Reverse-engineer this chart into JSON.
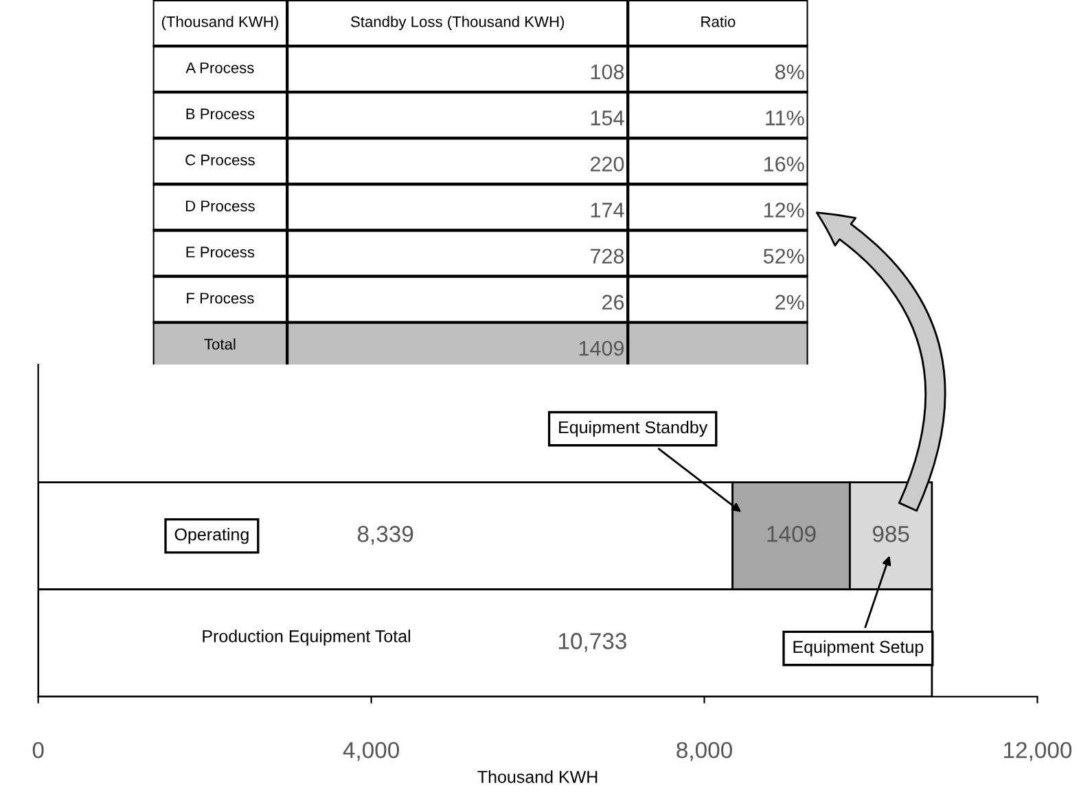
{
  "chart_data": [
    {
      "type": "other",
      "ylabel": "(Thousand KWH)",
      "categories": [
        "A Process",
        "B Process",
        "C Process",
        "D Process",
        "E Process",
        "F Process",
        "Total"
      ],
      "series": [
        {
          "name": "Standby Loss (Thousand KWH)",
          "values": [
            108,
            154,
            220,
            174,
            728,
            26,
            1409
          ],
          "value_labels": [
            "108",
            "154",
            "220",
            "174",
            "728",
            "26",
            "1409"
          ],
          "colors": [
            "#ffffff",
            "#ffffff",
            "#ffffff",
            "#ffffff",
            "#ffffff",
            "#ffffff",
            "#bfbfbf"
          ]
        },
        {
          "name": "Ratio",
          "values": [
            8,
            11,
            16,
            12,
            52,
            2,
            null
          ],
          "value_labels": [
            "8%",
            "11%",
            "16%",
            "12%",
            "52%",
            "2%",
            null
          ],
          "colors": [
            "#ffffff",
            "#ffffff",
            "#ffffff",
            "#ffffff",
            "#ffffff",
            "#ffffff",
            "#bfbfbf"
          ]
        }
      ]
    },
    {
      "type": "bar",
      "orientation": "horizontal",
      "stacked": true,
      "xlabel": "Thousand KWH",
      "categories": [
        null,
        null
      ],
      "xlim": [
        0,
        12000
      ],
      "xticks": [
        {
          "value": 0,
          "label": "0"
        },
        {
          "value": 4000,
          "label": "4,000"
        },
        {
          "value": 8000,
          "label": "8,000"
        },
        {
          "value": 12000,
          "label": "12,000"
        }
      ],
      "series": [
        {
          "name": "Operating",
          "color": "#ffffff",
          "values": [
            8339,
            null
          ],
          "value_labels": [
            "8,339",
            null
          ]
        },
        {
          "name": "Equipment Standby",
          "color": "#a6a6a6",
          "values": [
            1409,
            null
          ],
          "value_labels": [
            "1409",
            null
          ]
        },
        {
          "name": "Equipment Setup",
          "color": "#d9d9d9",
          "values": [
            985,
            null
          ],
          "value_labels": [
            "985",
            null
          ]
        },
        {
          "name": "Production Equipment Total",
          "color": "#ffffff",
          "values": [
            null,
            10733
          ],
          "value_labels": [
            null,
            "10,733"
          ]
        }
      ]
    }
  ]
}
